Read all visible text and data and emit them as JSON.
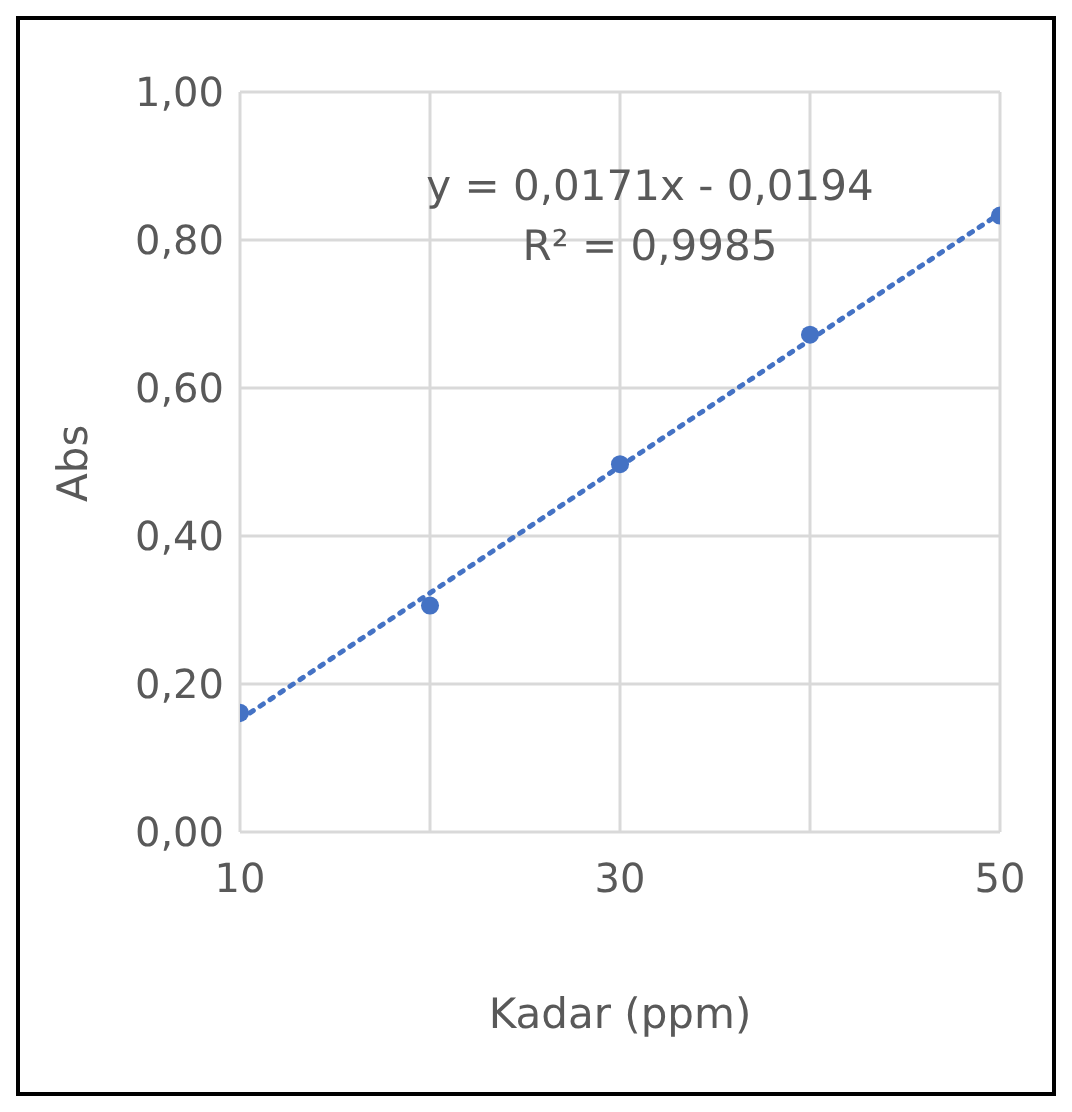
{
  "chart_data": {
    "type": "scatter",
    "xlabel": "Kadar (ppm)",
    "ylabel": "Abs",
    "x": [
      10,
      20,
      30,
      40,
      50
    ],
    "series": [
      {
        "type": "scatter",
        "color": "#4472c4",
        "values": [
          0.161,
          0.306,
          0.497,
          0.672,
          0.833
        ],
        "marker": "circle"
      },
      {
        "type": "line",
        "color": "#4472c4",
        "x": [
          10,
          50
        ],
        "values": [
          0.152,
          0.836
        ],
        "line_style": "dotted",
        "marker": "none"
      }
    ],
    "xlim": [
      10,
      50
    ],
    "xticks": [
      10,
      {
        "value": 20,
        "label": null
      },
      30,
      {
        "value": 40,
        "label": null
      },
      50
    ],
    "ylim": [
      0,
      1
    ],
    "yticks": [
      {
        "value": 0,
        "label": "0,00"
      },
      {
        "value": 0.2,
        "label": "0,20"
      },
      {
        "value": 0.4,
        "label": "0,40"
      },
      {
        "value": 0.6,
        "label": "0,60"
      },
      {
        "value": 0.8,
        "label": "0,80"
      },
      {
        "value": 1,
        "label": "1,00"
      }
    ],
    "grid": true,
    "legend": false,
    "annotations": [
      "y = 0,0171x - 0,0194",
      "R² = 0,9985"
    ]
  }
}
